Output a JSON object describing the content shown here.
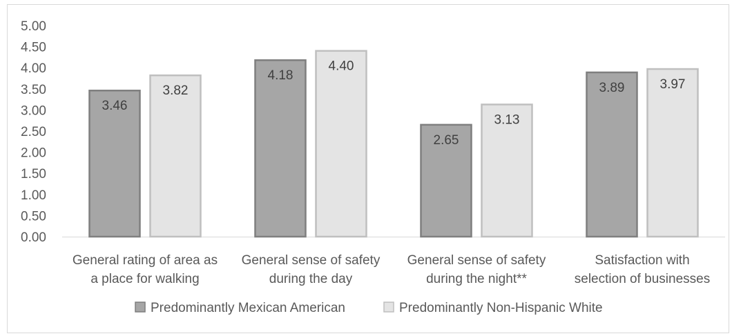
{
  "chart_data": {
    "type": "bar",
    "title": "",
    "xlabel": "",
    "ylabel": "",
    "ylim": [
      0,
      5
    ],
    "ytick_step": 0.5,
    "ytick_labels": [
      "0.00",
      "0.50",
      "1.00",
      "1.50",
      "2.00",
      "2.50",
      "3.00",
      "3.50",
      "4.00",
      "4.50",
      "5.00"
    ],
    "grid": false,
    "legend_position": "bottom",
    "categories": [
      [
        "General rating of area as",
        "a place for walking"
      ],
      [
        "General sense of safety",
        "during the day"
      ],
      [
        "General sense of safety",
        "during the night**"
      ],
      [
        "Satisfaction with",
        "selection of businesses"
      ]
    ],
    "series": [
      {
        "name": "Predominantly Mexican American",
        "values": [
          3.46,
          4.18,
          2.65,
          3.89
        ],
        "labels": [
          "3.46",
          "4.18",
          "2.65",
          "3.89"
        ],
        "fill": "#a6a6a6",
        "stroke": "#7f7f7f"
      },
      {
        "name": "Predominantly Non-Hispanic White",
        "values": [
          3.82,
          4.4,
          3.13,
          3.97
        ],
        "labels": [
          "3.82",
          "4.40",
          "3.13",
          "3.97"
        ],
        "fill": "#e4e4e4",
        "stroke": "#bfbfbf"
      }
    ]
  }
}
